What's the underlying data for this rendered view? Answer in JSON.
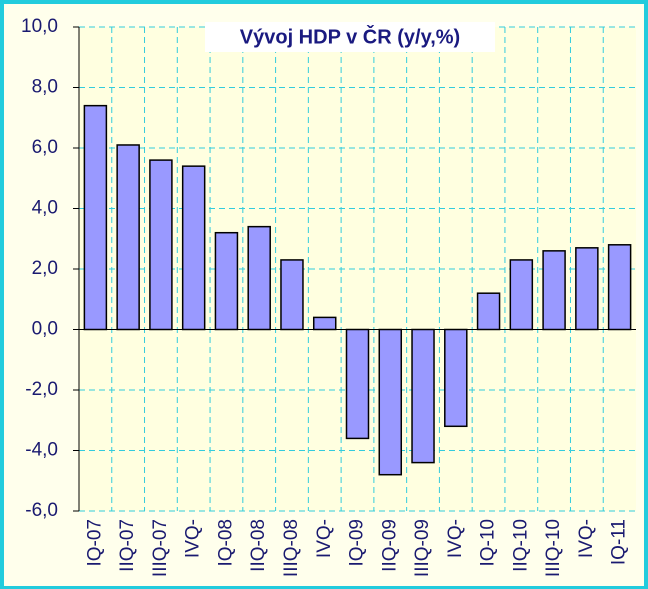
{
  "chart_data": {
    "type": "bar",
    "title": "Vývoj HDP v ČR (y/y,%)",
    "categories": [
      "IQ-07",
      "IIQ-07",
      "IIIQ-07",
      "IVQ-",
      "IQ-08",
      "IIQ-08",
      "IIIQ-08",
      "IVQ-",
      "IQ-09",
      "IIQ-09",
      "IIIQ-09",
      "IVQ-",
      "IQ-10",
      "IIQ-10",
      "IIIQ-10",
      "IVQ-",
      "IQ-11"
    ],
    "values": [
      7.4,
      6.1,
      5.6,
      5.4,
      3.2,
      3.4,
      2.3,
      0.4,
      -3.6,
      -4.8,
      -4.4,
      -3.2,
      1.2,
      2.3,
      2.6,
      2.7,
      2.8
    ],
    "color": "#9999ff",
    "ylim": [
      -6,
      10
    ],
    "yticks": [
      {
        "value": -6,
        "label": "-6,0"
      },
      {
        "value": -4,
        "label": "-4,0"
      },
      {
        "value": -2,
        "label": "-2,0"
      },
      {
        "value": 0,
        "label": "0,0"
      },
      {
        "value": 2,
        "label": "2,0"
      },
      {
        "value": 4,
        "label": "4,0"
      },
      {
        "value": 6,
        "label": "6,0"
      },
      {
        "value": 8,
        "label": "8,0"
      },
      {
        "value": 10,
        "label": "10,0"
      }
    ],
    "grid": true
  }
}
